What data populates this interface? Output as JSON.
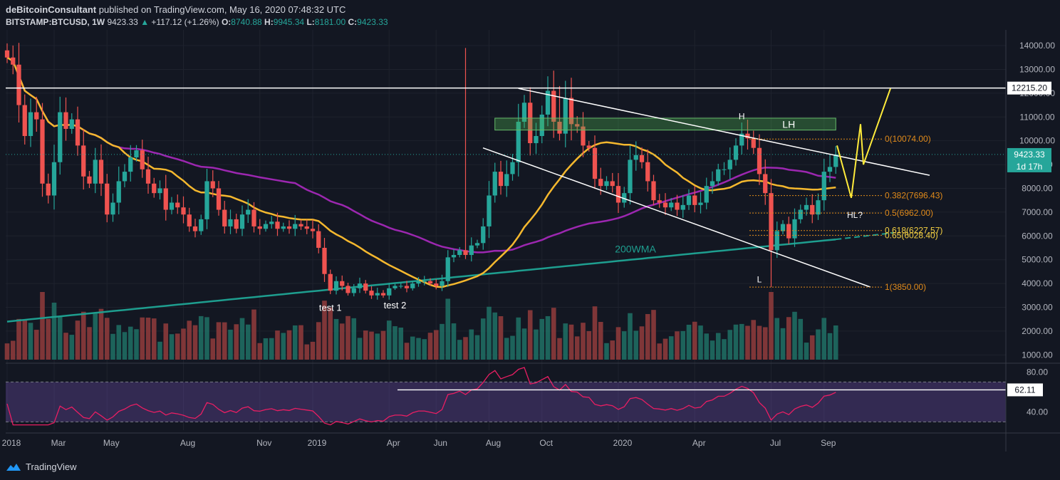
{
  "header": {
    "author": "deBitcoinConsultant",
    "published": "published on TradingView.com, May 16, 2020 07:48:32 UTC",
    "symbol": "BITSTAMP:BTCUSD, 1W",
    "last": "9423.33",
    "change": "+117.12 (+1.26%)",
    "o_label": "O:",
    "o": "8740.88",
    "h_label": "H:",
    "h": "9945.34",
    "l_label": "L:",
    "l": "8181.00",
    "c_label": "C:",
    "c": "9423.33"
  },
  "brand": "TradingView",
  "colors": {
    "background": "#131722",
    "up": "#26a69a",
    "down": "#ef5350",
    "ma_orange": "#f5b82e",
    "ma_purple": "#9c27b0",
    "wma_teal": "#1e9e8f",
    "fib": "#e08a1a",
    "box": "#4caf50",
    "rsi_line": "#e91e63",
    "projection": "#ffeb3b"
  },
  "chart_data": {
    "type": "candlestick",
    "price_axis": {
      "range": [
        800,
        14600
      ],
      "ticks": [
        "14000.00",
        "13000.00",
        "12000.00",
        "11000.00",
        "10000.00",
        "9000.00",
        "8000.00",
        "7000.00",
        "6000.00",
        "5000.00",
        "4000.00",
        "3000.00",
        "2000.00",
        "1000.00"
      ]
    },
    "rsi_axis": {
      "range": [
        26,
        86
      ],
      "ticks": [
        "80.00",
        "40.00"
      ],
      "bands": [
        70,
        30
      ]
    },
    "time_labels": [
      {
        "label": "2018",
        "w": 0
      },
      {
        "label": "Mar",
        "w": 8
      },
      {
        "label": "May",
        "w": 17
      },
      {
        "label": "Aug",
        "w": 30
      },
      {
        "label": "Nov",
        "w": 43
      },
      {
        "label": "2019",
        "w": 52
      },
      {
        "label": "Apr",
        "w": 65
      },
      {
        "label": "Jun",
        "w": 73
      },
      {
        "label": "Aug",
        "w": 82
      },
      {
        "label": "Oct",
        "w": 91
      },
      {
        "label": "2020",
        "w": 104
      },
      {
        "label": "Apr",
        "w": 117
      },
      {
        "label": "Jul",
        "w": 130
      },
      {
        "label": "Sep",
        "w": 139
      }
    ],
    "closes": [
      13500,
      13200,
      11500,
      10200,
      11200,
      10900,
      8200,
      7700,
      9100,
      11200,
      10500,
      10900,
      9800,
      8500,
      8200,
      9200,
      8200,
      6900,
      7400,
      8300,
      8700,
      9300,
      9600,
      8800,
      8200,
      7800,
      8000,
      7100,
      7400,
      7200,
      6900,
      6400,
      6200,
      6700,
      8300,
      8000,
      7100,
      6400,
      6700,
      6300,
      6900,
      7100,
      6400,
      6300,
      6500,
      6600,
      6300,
      6400,
      6300,
      6500,
      6400,
      6300,
      6200,
      5500,
      4400,
      3700,
      4100,
      3900,
      3600,
      3800,
      4000,
      3700,
      3500,
      3600,
      3500,
      3800,
      3900,
      3900,
      3800,
      4000,
      4100,
      4100,
      4000,
      3900,
      4100,
      5100,
      5200,
      5400,
      5200,
      5600,
      5700,
      6400,
      7700,
      8700,
      8100,
      8600,
      9100,
      10800,
      11600,
      9900,
      10200,
      11100,
      12100,
      10800,
      10300,
      11800,
      10700,
      10600,
      9800,
      9700,
      8400,
      8100,
      8300,
      8100,
      7400,
      7800,
      9200,
      9400,
      9100,
      8300,
      7500,
      7400,
      7200,
      7400,
      7100,
      7300,
      7700,
      7300,
      7400,
      8100,
      8300,
      8800,
      8800,
      9200,
      9800,
      10300,
      10100,
      9700,
      8600,
      7800,
      5400,
      6200,
      6500,
      5900,
      6700,
      7100,
      7300,
      6900,
      7500,
      8700,
      8900,
      9423
    ],
    "annotations": {
      "resistance_line": "12215.20",
      "last_price": "9423.33",
      "countdown": "1d 17h",
      "rsi_value": "62.11",
      "box_label": "LH",
      "high_label": "H",
      "low_label": "L",
      "hl_label": "HL?",
      "wma_label": "200WMA",
      "test1": "test 1",
      "test2": "test 2",
      "fib_levels": [
        {
          "label": "0(10074.00)",
          "v": 10074
        },
        {
          "label": "0.382(7696.43)",
          "v": 7696.43
        },
        {
          "label": "0.5(6962.00)",
          "v": 6962
        },
        {
          "label": "0.618(6227.57)",
          "v": 6227.57
        },
        {
          "label": "0.65(6028.40)",
          "v": 6028.4
        },
        {
          "label": "1(3850.00)",
          "v": 3850
        }
      ]
    }
  }
}
